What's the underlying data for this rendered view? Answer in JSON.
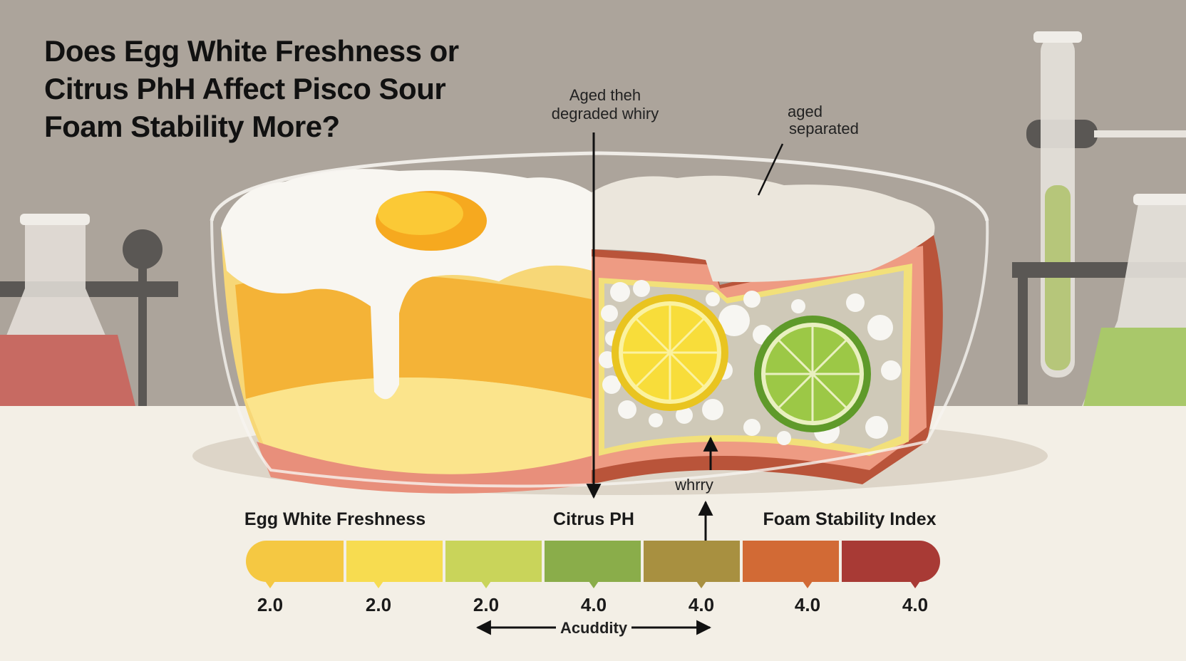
{
  "title": [
    "Does Egg White Freshness or",
    "Citrus PhH Affect Pisco Sour",
    "Foam Stability More?"
  ],
  "annotations": {
    "top": [
      "Aged theh",
      "degraded whiry"
    ],
    "right": [
      "aged",
      "separated"
    ],
    "bottom": "whrry"
  },
  "scale": {
    "labels": [
      "Egg White Freshness",
      "Citrus PH",
      "Foam Stability Index"
    ],
    "ticks": [
      "2.0",
      "2.0",
      "2.0",
      "4.0",
      "4.0",
      "4.0",
      "4.0"
    ],
    "axis_label": "Acuddity"
  }
}
